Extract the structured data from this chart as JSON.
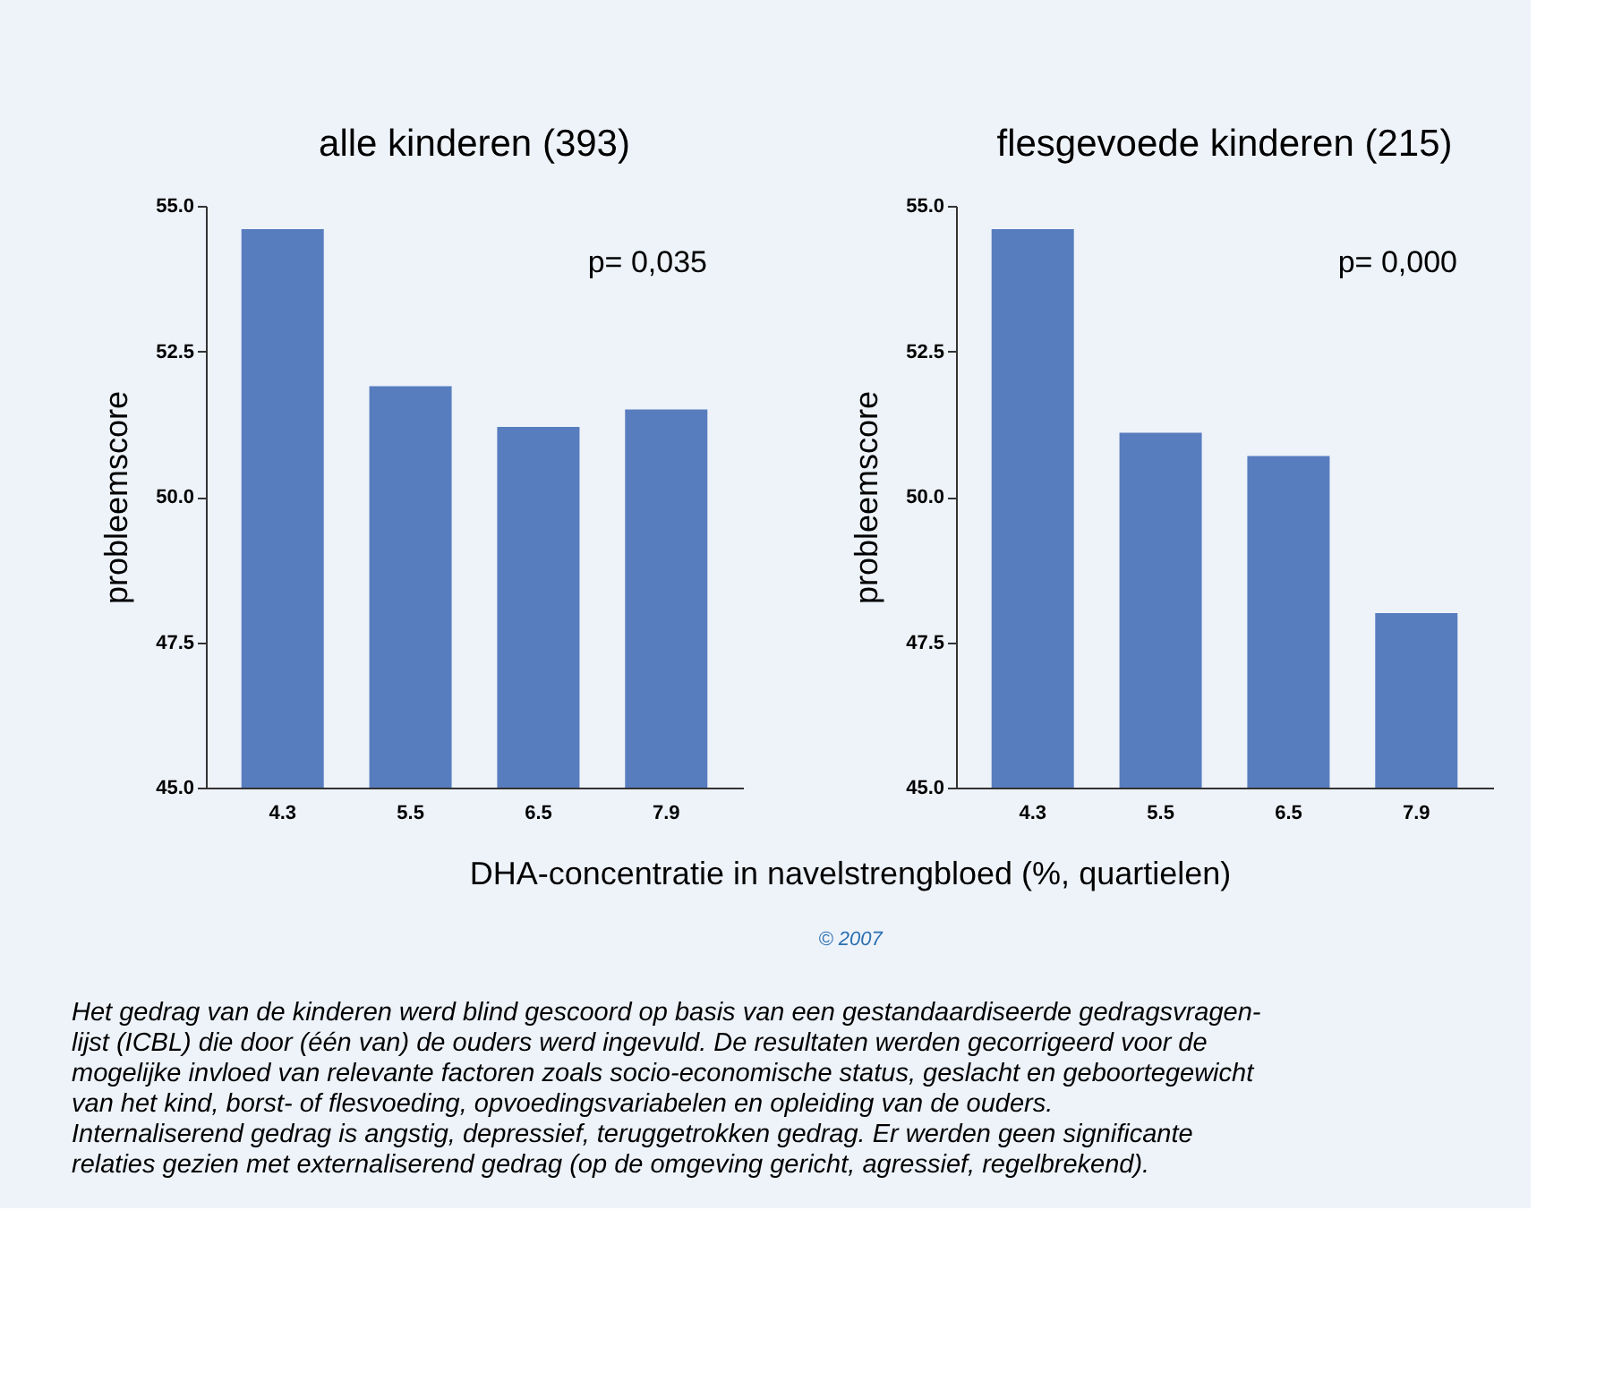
{
  "chart_data": [
    {
      "type": "bar",
      "title": "alle kinderen (393)",
      "ylabel": "probleemscore",
      "xlabel": "DHA-concentratie in navelstrengbloed (%, quartielen)",
      "categories": [
        "4.3",
        "5.5",
        "6.5",
        "7.9"
      ],
      "series": [
        {
          "color": "#577dbf",
          "values": [
            54.6,
            51.9,
            51.2,
            51.5
          ]
        }
      ],
      "ylim": [
        45.0,
        55.0
      ],
      "yticks": [
        {
          "value": 45,
          "label": "45.0"
        },
        {
          "value": 47.5,
          "label": "47.5"
        },
        {
          "value": 50,
          "label": "50.0"
        },
        {
          "value": 52.5,
          "label": "52.5"
        },
        {
          "value": 55,
          "label": "55.0"
        }
      ],
      "grid": false,
      "annotations": [
        "p= 0,035",
        "© 2007",
        "Het gedrag van de kinderen werd blind gescoord op basis van een gestandaardiseerde gedragsvragen-\nlijst (ICBL) die door (één van) de ouders werd ingevuld. De resultaten werden gecorrigeerd voor de\nmogelijke invloed van relevante factoren zoals socio-economische status, geslacht en geboortegewicht\nvan het kind, borst- of flesvoeding, opvoedingsvariabelen en opleiding van de ouders.\nInternaliserend gedrag is angstig, depressief, teruggetrokken gedrag. Er werden geen significante\nrelaties gezien met externaliserend gedrag (op de omgeving gericht, agressief, regelbrekend)."
      ]
    },
    {
      "type": "bar",
      "title": "flesgevoede kinderen (215)",
      "ylabel": "probleemscore",
      "categories": [
        "4.3",
        "5.5",
        "6.5",
        "7.9"
      ],
      "series": [
        {
          "color": "#577dbf",
          "values": [
            54.6,
            51.1,
            50.7,
            48.0
          ]
        }
      ],
      "ylim": [
        45.0,
        55.0
      ],
      "yticks": [
        {
          "value": 45,
          "label": "45.0"
        },
        {
          "value": 47.5,
          "label": "47.5"
        },
        {
          "value": 50,
          "label": "50.0"
        },
        {
          "value": 52.5,
          "label": "52.5"
        },
        {
          "value": 55,
          "label": "55.0"
        }
      ],
      "grid": false,
      "annotations": [
        "p= 0,000"
      ]
    }
  ]
}
